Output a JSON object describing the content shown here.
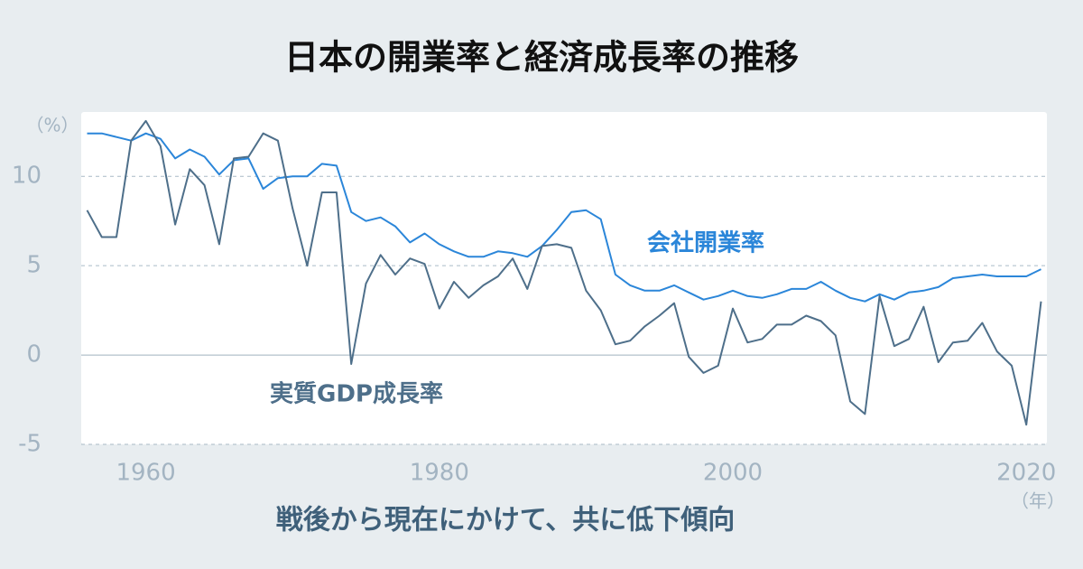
{
  "chart_data": {
    "type": "line",
    "title": "日本の開業率と経済成長率の推移",
    "subtitle": "戦後から現在にかけて、共に低下傾向",
    "y_unit": "（%）",
    "x_unit": "（年）",
    "x": [
      1956,
      1957,
      1958,
      1959,
      1960,
      1961,
      1962,
      1963,
      1964,
      1965,
      1966,
      1967,
      1968,
      1969,
      1970,
      1971,
      1972,
      1973,
      1974,
      1975,
      1976,
      1977,
      1978,
      1979,
      1980,
      1981,
      1982,
      1983,
      1984,
      1985,
      1986,
      1987,
      1988,
      1989,
      1990,
      1991,
      1992,
      1993,
      1994,
      1995,
      1996,
      1997,
      1998,
      1999,
      2000,
      2001,
      2002,
      2003,
      2004,
      2005,
      2006,
      2007,
      2008,
      2009,
      2010,
      2011,
      2012,
      2013,
      2014,
      2015,
      2016,
      2017,
      2018,
      2019,
      2020,
      2021
    ],
    "series": [
      {
        "name": "会社開業率",
        "color": "#2b86d9",
        "values": [
          12.4,
          12.4,
          12.2,
          12.0,
          12.4,
          12.1,
          11.0,
          11.5,
          11.1,
          10.1,
          10.9,
          11.0,
          9.3,
          9.9,
          10.0,
          10.0,
          10.7,
          10.6,
          8.0,
          7.5,
          7.7,
          7.2,
          6.3,
          6.8,
          6.2,
          5.8,
          5.5,
          5.5,
          5.8,
          5.7,
          5.5,
          6.1,
          7.0,
          8.0,
          8.1,
          7.6,
          4.5,
          3.9,
          3.6,
          3.6,
          3.9,
          3.5,
          3.1,
          3.3,
          3.6,
          3.3,
          3.2,
          3.4,
          3.7,
          3.7,
          4.1,
          3.6,
          3.2,
          3.0,
          3.4,
          3.1,
          3.5,
          3.6,
          3.8,
          4.3,
          4.4,
          4.5,
          4.4,
          4.4,
          4.4,
          4.8
        ]
      },
      {
        "name": "実質GDP成長率",
        "color": "#4e6f8a",
        "values": [
          8.1,
          6.6,
          6.6,
          12.0,
          13.1,
          11.7,
          7.3,
          10.4,
          9.5,
          6.2,
          11.0,
          11.1,
          12.4,
          12.0,
          8.2,
          5.0,
          9.1,
          9.1,
          -0.5,
          4.0,
          5.6,
          4.5,
          5.4,
          5.1,
          2.6,
          4.1,
          3.2,
          3.9,
          4.4,
          5.4,
          3.7,
          6.1,
          6.2,
          6.0,
          3.6,
          2.5,
          0.6,
          0.8,
          1.6,
          2.2,
          2.9,
          -0.1,
          -1.0,
          -0.6,
          2.6,
          0.7,
          0.9,
          1.7,
          1.7,
          2.2,
          1.9,
          1.1,
          -2.6,
          -3.3,
          3.3,
          0.5,
          0.9,
          2.7,
          -0.4,
          0.7,
          0.8,
          1.8,
          0.2,
          -0.6,
          -3.9,
          3.0
        ]
      }
    ],
    "xlim": [
      1955.6,
      2021.4
    ],
    "xticks": [
      1960,
      1980,
      2000,
      2020
    ],
    "ylim": [
      -5,
      13.6
    ],
    "yticks": [
      -5,
      0,
      5,
      10
    ],
    "grid": true
  }
}
